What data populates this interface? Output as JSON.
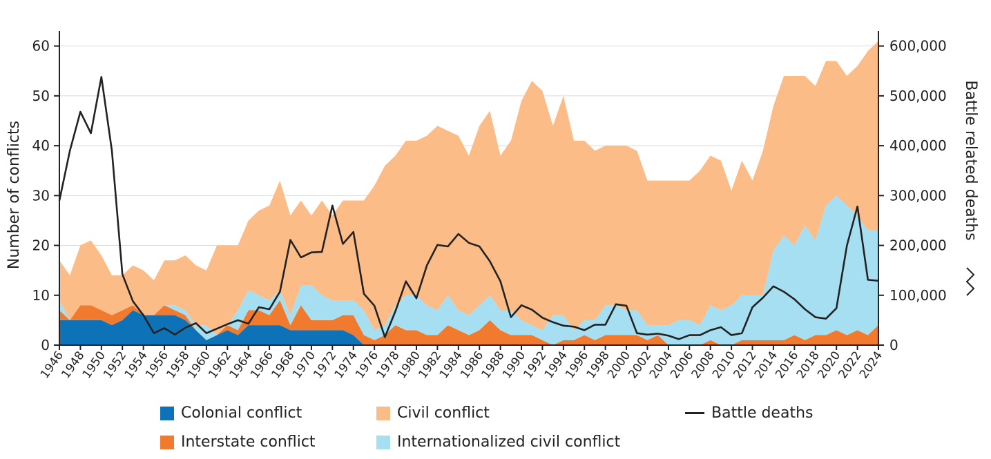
{
  "chart_data": {
    "type": "area",
    "x": [
      1946,
      1947,
      1948,
      1949,
      1950,
      1951,
      1952,
      1953,
      1954,
      1955,
      1956,
      1957,
      1958,
      1959,
      1960,
      1961,
      1962,
      1963,
      1964,
      1965,
      1966,
      1967,
      1968,
      1969,
      1970,
      1971,
      1972,
      1973,
      1974,
      1975,
      1976,
      1977,
      1978,
      1979,
      1980,
      1981,
      1982,
      1983,
      1984,
      1985,
      1986,
      1987,
      1988,
      1989,
      1990,
      1991,
      1992,
      1993,
      1994,
      1995,
      1996,
      1997,
      1998,
      1999,
      2000,
      2001,
      2002,
      2003,
      2004,
      2005,
      2006,
      2007,
      2008,
      2009,
      2010,
      2011,
      2012,
      2013,
      2014,
      2015,
      2016,
      2017,
      2018,
      2019,
      2020,
      2021,
      2022,
      2023,
      2024
    ],
    "x_tick_labels": [
      "1946",
      "1948",
      "1950",
      "1952",
      "1954",
      "1956",
      "1958",
      "1960",
      "1962",
      "1964",
      "1966",
      "1968",
      "1970",
      "1972",
      "1974",
      "1976",
      "1978",
      "1980",
      "1982",
      "1984",
      "1986",
      "1988",
      "1990",
      "1992",
      "1994",
      "1996",
      "1998",
      "2000",
      "2002",
      "2004",
      "2006",
      "2008",
      "2010",
      "2012",
      "2014",
      "2016",
      "2018",
      "2020",
      "2022",
      "2024"
    ],
    "ylabel": "Number of conflicts",
    "ylim": [
      0,
      63
    ],
    "y_ticks": [
      0,
      10,
      20,
      30,
      40,
      50,
      60
    ],
    "y2label": "Battle related deaths",
    "y2lim": [
      0,
      630000
    ],
    "y2_tick_labels": [
      "0",
      "100,000",
      "200,000",
      "300,000",
      "400,000",
      "500,000",
      "600,000"
    ],
    "grid": "horizontal",
    "series": [
      {
        "name": "Colonial conflict",
        "color": "#0e72b8",
        "stack": true,
        "values": [
          5,
          5,
          5,
          5,
          5,
          4,
          5,
          7,
          6,
          6,
          6,
          6,
          5,
          3,
          1,
          2,
          3,
          2,
          4,
          4,
          4,
          4,
          3,
          3,
          3,
          3,
          3,
          3,
          2,
          0,
          0,
          0,
          0,
          0,
          0,
          0,
          0,
          0,
          0,
          0,
          0,
          0,
          0,
          0,
          0,
          0,
          0,
          0,
          0,
          0,
          0,
          0,
          0,
          0,
          0,
          0,
          0,
          0,
          0,
          0,
          0,
          0,
          0,
          0,
          0,
          0,
          0,
          0,
          0,
          0,
          0,
          0,
          0,
          0,
          0,
          0,
          0,
          0,
          0
        ]
      },
      {
        "name": "Interstate conflict",
        "color": "#f07b2e",
        "stack": true,
        "values": [
          2,
          0,
          3,
          3,
          2,
          2,
          2,
          1,
          0,
          0,
          2,
          1,
          1,
          0,
          0,
          0,
          1,
          1,
          3,
          3,
          2,
          5,
          1,
          5,
          2,
          2,
          2,
          3,
          4,
          2,
          1,
          2,
          4,
          3,
          3,
          2,
          2,
          4,
          3,
          2,
          3,
          5,
          3,
          2,
          2,
          2,
          1,
          0,
          1,
          1,
          2,
          1,
          2,
          2,
          2,
          2,
          1,
          2,
          0,
          0,
          0,
          0,
          1,
          0,
          0,
          1,
          1,
          1,
          1,
          1,
          2,
          1,
          2,
          2,
          3,
          2,
          3,
          2,
          4
        ]
      },
      {
        "name": "Internationalized civil conflict",
        "color": "#a6dff2",
        "stack": true,
        "values": [
          2,
          0,
          0,
          0,
          0,
          0,
          0,
          0,
          0,
          0,
          0,
          1,
          1,
          1,
          3,
          0,
          0,
          4,
          4,
          3,
          3,
          2,
          2,
          4,
          7,
          5,
          4,
          3,
          3,
          5,
          2,
          2,
          4,
          7,
          7,
          6,
          5,
          6,
          4,
          4,
          5,
          5,
          4,
          5,
          3,
          2,
          2,
          6,
          5,
          2,
          3,
          4,
          6,
          6,
          5,
          5,
          3,
          2,
          4,
          5,
          5,
          4,
          7,
          7,
          8,
          9,
          9,
          9,
          18,
          21,
          18,
          23,
          19,
          26,
          27,
          26,
          23,
          21,
          19
        ]
      },
      {
        "name": "Civil conflict",
        "color": "#fbbc87",
        "stack": true,
        "values": [
          8,
          9,
          12,
          13,
          11,
          8,
          7,
          8,
          9,
          7,
          9,
          9,
          11,
          12,
          11,
          18,
          16,
          13,
          14,
          17,
          19,
          22,
          20,
          17,
          14,
          19,
          17,
          20,
          20,
          22,
          29,
          32,
          30,
          31,
          31,
          34,
          37,
          33,
          35,
          32,
          36,
          37,
          31,
          34,
          44,
          49,
          48,
          38,
          44,
          38,
          36,
          34,
          32,
          32,
          33,
          32,
          29,
          29,
          29,
          28,
          28,
          31,
          30,
          30,
          23,
          27,
          23,
          29,
          29,
          32,
          34,
          30,
          31,
          29,
          27,
          26,
          30,
          36,
          38
        ]
      },
      {
        "name": "Battle deaths",
        "color": "#222222",
        "type": "line",
        "axis": "right",
        "values": [
          290000,
          390000,
          468000,
          425000,
          538000,
          390000,
          142000,
          88000,
          60000,
          24000,
          34000,
          21000,
          35000,
          44000,
          24000,
          33000,
          42000,
          50000,
          43000,
          76000,
          72000,
          107000,
          211000,
          176000,
          186000,
          187000,
          280000,
          203000,
          227000,
          103000,
          79000,
          16000,
          68000,
          128000,
          94000,
          160000,
          201000,
          198000,
          223000,
          205000,
          198000,
          168000,
          128000,
          56000,
          80000,
          71000,
          55000,
          46000,
          39000,
          37000,
          30000,
          41000,
          41000,
          82000,
          79000,
          24000,
          21000,
          23000,
          19000,
          12000,
          20000,
          20000,
          30000,
          36000,
          20000,
          24000,
          76000,
          95000,
          118000,
          107000,
          92000,
          72000,
          56000,
          53000,
          74000,
          200000,
          278000,
          131000,
          129000
        ]
      }
    ],
    "legend": [
      {
        "label": "Colonial conflict",
        "color": "#0e72b8",
        "kind": "swatch"
      },
      {
        "label": "Civil conflict",
        "color": "#fbbc87",
        "kind": "swatch"
      },
      {
        "label": "Battle deaths",
        "color": "#222222",
        "kind": "line"
      },
      {
        "label": "Interstate conflict",
        "color": "#f07b2e",
        "kind": "swatch"
      },
      {
        "label": "Internationalized civil conflict",
        "color": "#a6dff2",
        "kind": "swatch"
      }
    ],
    "legend_placement": "bottom"
  }
}
